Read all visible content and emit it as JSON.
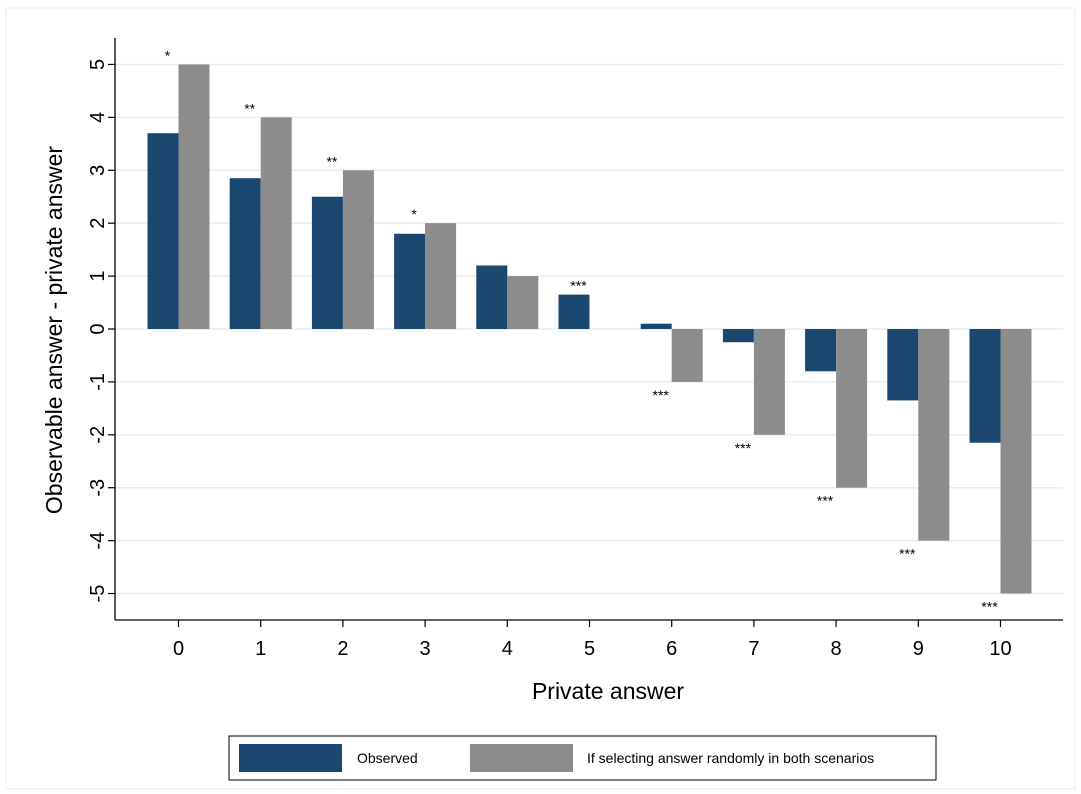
{
  "chart_data": {
    "type": "bar",
    "title": "",
    "xlabel": "Private answer",
    "ylabel": "Observable answer - private answer",
    "categories": [
      "0",
      "1",
      "2",
      "3",
      "4",
      "5",
      "6",
      "7",
      "8",
      "9",
      "10"
    ],
    "ylim": [
      -5.5,
      5.5
    ],
    "yticks": [
      5,
      4,
      3,
      2,
      1,
      0,
      -1,
      -2,
      -3,
      -4,
      -5
    ],
    "grid": true,
    "legend_position": "bottom",
    "series": [
      {
        "name": "Observed",
        "color": "#1a476f",
        "values": [
          3.7,
          2.85,
          2.5,
          1.8,
          1.2,
          0.65,
          0.1,
          -0.25,
          -0.8,
          -1.35,
          -2.15
        ]
      },
      {
        "name": "If selecting answer randomly in both scenarios",
        "color": "#8c8c8c",
        "values": [
          5,
          4,
          3,
          2,
          1,
          0,
          -1,
          -2,
          -3,
          -4,
          -5
        ]
      }
    ],
    "significance": [
      "*",
      "**",
      "**",
      "*",
      "",
      "***",
      "***",
      "***",
      "***",
      "***",
      "***"
    ]
  }
}
